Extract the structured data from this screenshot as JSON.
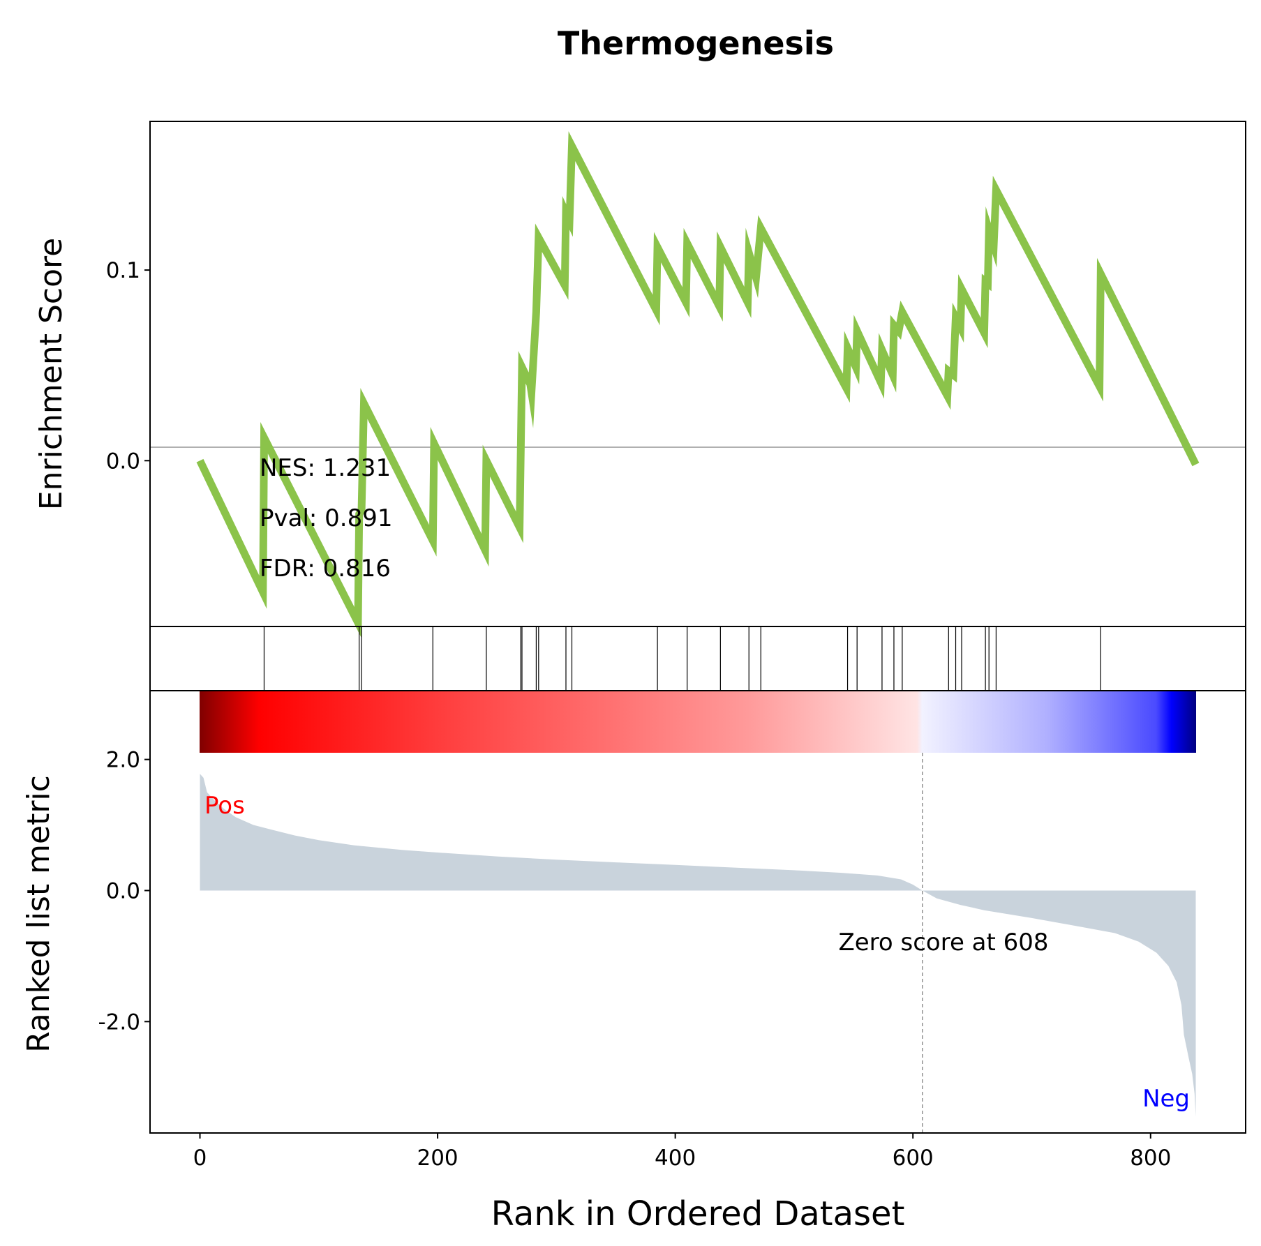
{
  "chart_data": {
    "type": "line",
    "title": "Thermogenesis",
    "xlabel": "Rank in Ordered Dataset",
    "colors": {
      "es_line": "#8bc34a",
      "metric_fill": "#c9d3dc",
      "pos_label": "#ff0000",
      "neg_label": "#0000ff",
      "zero_line": "#808080"
    },
    "es_panel": {
      "ylabel": "Enrichment Score",
      "ylim": [
        -0.087,
        0.178
      ],
      "yticks": [
        0.0,
        0.1
      ],
      "ytick_labels": [
        "0.0",
        "0.1"
      ],
      "stats": [
        "NES: 1.231",
        "Pval: 0.891",
        "FDR: 0.816"
      ],
      "es_line": [
        [
          0,
          0.0
        ],
        [
          53,
          -0.069
        ],
        [
          54,
          0.012
        ],
        [
          133,
          -0.085
        ],
        [
          134,
          -0.028
        ],
        [
          136,
          -0.026
        ],
        [
          138,
          0.03
        ],
        [
          196,
          -0.042
        ],
        [
          197,
          0.009
        ],
        [
          240,
          -0.047
        ],
        [
          241,
          0.0
        ],
        [
          269,
          -0.035
        ],
        [
          270,
          0.006
        ],
        [
          271,
          0.049
        ],
        [
          278,
          0.04
        ],
        [
          279,
          0.036
        ],
        [
          283,
          0.078
        ],
        [
          285,
          0.117
        ],
        [
          307,
          0.092
        ],
        [
          308,
          0.13
        ],
        [
          311,
          0.126
        ],
        [
          313,
          0.165
        ],
        [
          384,
          0.079
        ],
        [
          385,
          0.112
        ],
        [
          409,
          0.083
        ],
        [
          410,
          0.114
        ],
        [
          437,
          0.081
        ],
        [
          438,
          0.112
        ],
        [
          461,
          0.083
        ],
        [
          462,
          0.109
        ],
        [
          468,
          0.096
        ],
        [
          472,
          0.122
        ],
        [
          544,
          0.038
        ],
        [
          545,
          0.059
        ],
        [
          552,
          0.049
        ],
        [
          553,
          0.068
        ],
        [
          573,
          0.041
        ],
        [
          574,
          0.058
        ],
        [
          583,
          0.045
        ],
        [
          584,
          0.071
        ],
        [
          588,
          0.068
        ],
        [
          591,
          0.078
        ],
        [
          629,
          0.034
        ],
        [
          630,
          0.047
        ],
        [
          634,
          0.045
        ],
        [
          636,
          0.075
        ],
        [
          640,
          0.07
        ],
        [
          641,
          0.09
        ],
        [
          660,
          0.067
        ],
        [
          661,
          0.094
        ],
        [
          663,
          0.093
        ],
        [
          664,
          0.121
        ],
        [
          668,
          0.113
        ],
        [
          670,
          0.142
        ],
        [
          757,
          0.039
        ],
        [
          758,
          0.098
        ],
        [
          838,
          -0.002
        ]
      ]
    },
    "hits": [
      54,
      134,
      136,
      196,
      241,
      270,
      271,
      283,
      285,
      308,
      313,
      385,
      410,
      438,
      462,
      472,
      545,
      553,
      574,
      584,
      591,
      630,
      636,
      641,
      661,
      664,
      670,
      758
    ],
    "metric_panel": {
      "ylabel": "Ranked list metric",
      "ylim": [
        -3.7,
        3.05
      ],
      "yticks": [
        2.0,
        0.0,
        -2.0
      ],
      "ytick_labels": [
        "2.0",
        "0.0",
        "-2.0"
      ],
      "pos_label": "Pos",
      "neg_label": "Neg",
      "zero_cross_label": "Zero score at 608",
      "zero_cross": 608,
      "metric_curve": [
        [
          0,
          1.78
        ],
        [
          3,
          1.72
        ],
        [
          6,
          1.5
        ],
        [
          12,
          1.38
        ],
        [
          20,
          1.25
        ],
        [
          30,
          1.12
        ],
        [
          45,
          1.0
        ],
        [
          60,
          0.93
        ],
        [
          80,
          0.84
        ],
        [
          100,
          0.77
        ],
        [
          130,
          0.69
        ],
        [
          170,
          0.62
        ],
        [
          200,
          0.58
        ],
        [
          250,
          0.52
        ],
        [
          300,
          0.47
        ],
        [
          350,
          0.43
        ],
        [
          400,
          0.39
        ],
        [
          450,
          0.35
        ],
        [
          500,
          0.31
        ],
        [
          540,
          0.27
        ],
        [
          570,
          0.23
        ],
        [
          590,
          0.17
        ],
        [
          600,
          0.09
        ],
        [
          608,
          0.0
        ],
        [
          620,
          -0.12
        ],
        [
          640,
          -0.22
        ],
        [
          660,
          -0.3
        ],
        [
          700,
          -0.42
        ],
        [
          740,
          -0.55
        ],
        [
          770,
          -0.65
        ],
        [
          790,
          -0.78
        ],
        [
          805,
          -0.95
        ],
        [
          815,
          -1.15
        ],
        [
          822,
          -1.4
        ],
        [
          826,
          -1.75
        ],
        [
          828,
          -2.2
        ],
        [
          832,
          -2.55
        ],
        [
          835,
          -2.8
        ],
        [
          837,
          -3.1
        ],
        [
          838,
          -3.45
        ]
      ]
    },
    "xticks": [
      0,
      200,
      400,
      600,
      800
    ],
    "xtick_labels": [
      "0",
      "200",
      "400",
      "600",
      "800"
    ],
    "xlim": [
      -42,
      880
    ]
  }
}
